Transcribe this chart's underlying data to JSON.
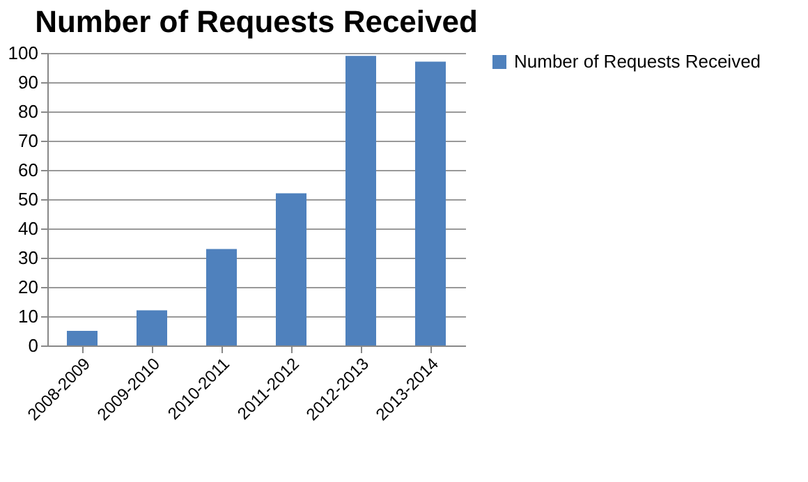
{
  "chart_data": {
    "type": "bar",
    "title": "Number of Requests Received",
    "categories": [
      "2008-2009",
      "2009-2010",
      "2010-2011",
      "2011-2012",
      "2012-2013",
      "2013-2014"
    ],
    "series": [
      {
        "name": "Number of Requests Received",
        "color": "#4f81bd",
        "values": [
          5,
          12,
          33,
          52,
          99,
          97
        ]
      }
    ],
    "ylim": [
      0,
      100
    ],
    "yticks": [
      0,
      10,
      20,
      30,
      40,
      50,
      60,
      70,
      80,
      90,
      100
    ],
    "grid": "y",
    "legend": "right"
  }
}
